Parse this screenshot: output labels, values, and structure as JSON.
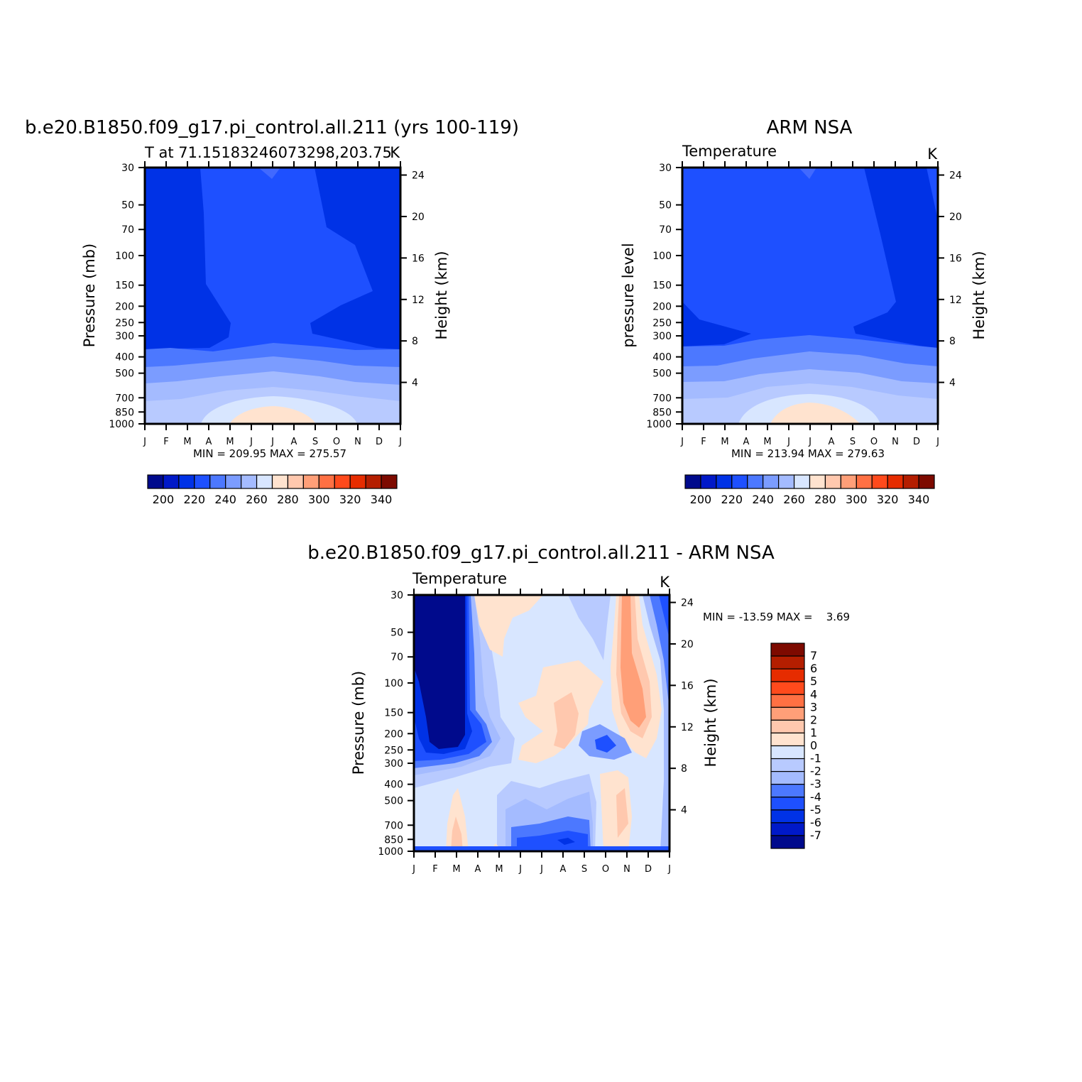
{
  "chart_data": [
    {
      "type": "heatmap",
      "title": "b.e20.B1850.f09_g17.pi_control.all.211 (yrs 100-119)",
      "subtitle_left": "T at 71.15183246073298,203.75",
      "subtitle_right": "K",
      "ylabel": "Pressure (mb)",
      "ylabel_right": "Height (km)",
      "x_ticks": [
        "J",
        "F",
        "M",
        "A",
        "M",
        "J",
        "J",
        "A",
        "S",
        "O",
        "N",
        "D",
        "J"
      ],
      "y_ticks": [
        "30",
        "50",
        "70",
        "100",
        "150",
        "200",
        "250",
        "300",
        "400",
        "500",
        "700",
        "850",
        "1000"
      ],
      "y2_ticks": [
        "24",
        "20",
        "16",
        "12",
        "8",
        "4"
      ],
      "min_max_text": "MIN = 209.95 MAX = 275.57",
      "colorbar_labels": [
        "200",
        "220",
        "240",
        "260",
        "280",
        "300",
        "320",
        "340"
      ],
      "colorbar_levels": [
        190,
        200,
        210,
        220,
        230,
        240,
        250,
        260,
        270,
        280,
        290,
        300,
        310,
        320,
        330,
        340,
        350
      ]
    },
    {
      "type": "heatmap",
      "title": "ARM NSA",
      "subtitle_left": "Temperature",
      "subtitle_right": "K",
      "ylabel": "pressure level",
      "ylabel_right": "Height (km)",
      "x_ticks": [
        "J",
        "F",
        "M",
        "A",
        "M",
        "J",
        "J",
        "A",
        "S",
        "O",
        "N",
        "D",
        "J"
      ],
      "y_ticks": [
        "30",
        "50",
        "70",
        "100",
        "150",
        "200",
        "250",
        "300",
        "400",
        "500",
        "700",
        "850",
        "1000"
      ],
      "y2_ticks": [
        "24",
        "20",
        "16",
        "12",
        "8",
        "4"
      ],
      "min_max_text": "MIN = 213.94 MAX = 279.63",
      "colorbar_labels": [
        "200",
        "220",
        "240",
        "260",
        "280",
        "300",
        "320",
        "340"
      ],
      "colorbar_levels": [
        190,
        200,
        210,
        220,
        230,
        240,
        250,
        260,
        270,
        280,
        290,
        300,
        310,
        320,
        330,
        340,
        350
      ]
    },
    {
      "type": "heatmap",
      "title": "b.e20.B1850.f09_g17.pi_control.all.211 - ARM NSA",
      "subtitle_left": "Temperature",
      "subtitle_right": "K",
      "ylabel": "Pressure (mb)",
      "ylabel_right": "Height (km)",
      "x_ticks": [
        "J",
        "F",
        "M",
        "A",
        "M",
        "J",
        "J",
        "A",
        "S",
        "O",
        "N",
        "D",
        "J"
      ],
      "y_ticks": [
        "30",
        "50",
        "70",
        "100",
        "150",
        "200",
        "250",
        "300",
        "400",
        "500",
        "700",
        "850",
        "1000"
      ],
      "y2_ticks": [
        "24",
        "20",
        "16",
        "12",
        "8",
        "4"
      ],
      "min_max_text": "MIN = -13.59 MAX =    3.69",
      "colorbar_labels": [
        "7",
        "6",
        "5",
        "4",
        "3",
        "2",
        "1",
        "0",
        "-1",
        "-2",
        "-3",
        "-4",
        "-5",
        "-6",
        "-7"
      ]
    }
  ]
}
